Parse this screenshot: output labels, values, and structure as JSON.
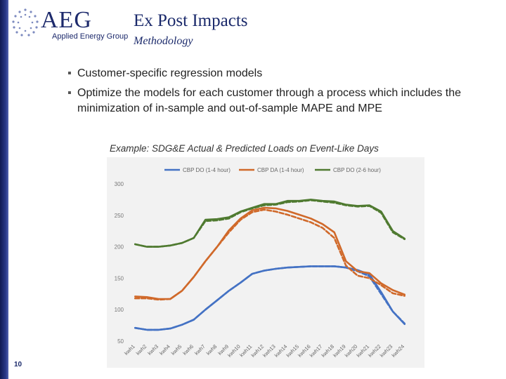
{
  "logo": {
    "name": "AEG",
    "tagline": "Applied Energy Group"
  },
  "slide": {
    "title": "Ex Post Impacts",
    "subtitle": "Methodology",
    "page_number": "10",
    "bullets": [
      "Customer-specific regression models",
      "Optimize the models for each customer through a process which includes the minimization of in-sample and out-of-sample MAPE and MPE"
    ],
    "chart_caption": "Example: SDG&E Actual & Predicted Loads on Event-Like Days"
  },
  "colors": {
    "title": "#1b2a6b",
    "blue_series": "#4472c4",
    "orange_series": "#d0692a",
    "green_series": "#4f7a30"
  },
  "chart_data": {
    "type": "line",
    "title": "",
    "xlabel": "",
    "ylabel": "",
    "ylim": [
      50,
      300
    ],
    "yticks": [
      50,
      100,
      150,
      200,
      250,
      300
    ],
    "grid": false,
    "legend_position": "top",
    "categories": [
      "kwh1",
      "kwh2",
      "kwh3",
      "kwh4",
      "kwh5",
      "kwh6",
      "kwh7",
      "kwh8",
      "kwh9",
      "kwh10",
      "kwh11",
      "kwh12",
      "kwh13",
      "kwh14",
      "kwh15",
      "kwh16",
      "kwh17",
      "kwh18",
      "kwh19",
      "kwh20",
      "kwh21",
      "kwh22",
      "kwh23",
      "kwh24"
    ],
    "legend": [
      "CBP DO (1-4 hour)",
      "CBP DA (1-4 hour)",
      "CBP DO (2-6 hour)"
    ],
    "series": [
      {
        "name": "CBP DO (1-4 hour)",
        "color": "#4472c4",
        "style": "solid",
        "values": [
          71,
          68,
          68,
          70,
          76,
          84,
          100,
          115,
          130,
          143,
          157,
          162,
          165,
          167,
          168,
          169,
          169,
          169,
          167,
          163,
          156,
          128,
          97,
          77
        ]
      },
      {
        "name": "CBP DO (1-4 hour)",
        "color": "#4472c4",
        "style": "dashed",
        "values": [
          71,
          68,
          68,
          70,
          76,
          84,
          100,
          115,
          130,
          143,
          157,
          162,
          165,
          167,
          168,
          169,
          169,
          169,
          167,
          161,
          153,
          125,
          97,
          78
        ]
      },
      {
        "name": "CBP DA (1-4 hour)",
        "color": "#d0692a",
        "style": "solid",
        "values": [
          121,
          120,
          117,
          117,
          130,
          152,
          177,
          200,
          226,
          245,
          258,
          262,
          261,
          257,
          251,
          245,
          236,
          223,
          177,
          161,
          158,
          142,
          131,
          124
        ]
      },
      {
        "name": "CBP DA (1-4 hour)",
        "color": "#d0692a",
        "style": "dashed",
        "values": [
          118,
          118,
          116,
          117,
          130,
          152,
          177,
          200,
          223,
          243,
          255,
          259,
          256,
          251,
          245,
          239,
          230,
          214,
          170,
          154,
          150,
          139,
          126,
          122
        ]
      },
      {
        "name": "CBP DO (2-6 hour)",
        "color": "#4f7a30",
        "style": "solid",
        "values": [
          204,
          200,
          200,
          202,
          206,
          214,
          243,
          244,
          247,
          256,
          262,
          268,
          268,
          273,
          273,
          275,
          273,
          272,
          267,
          265,
          266,
          256,
          225,
          213
        ]
      },
      {
        "name": "CBP DO (2-6 hour)",
        "color": "#4f7a30",
        "style": "dashed",
        "values": [
          204,
          200,
          200,
          202,
          206,
          214,
          241,
          242,
          245,
          255,
          261,
          266,
          267,
          271,
          272,
          274,
          272,
          270,
          266,
          264,
          265,
          254,
          223,
          212
        ]
      }
    ]
  }
}
